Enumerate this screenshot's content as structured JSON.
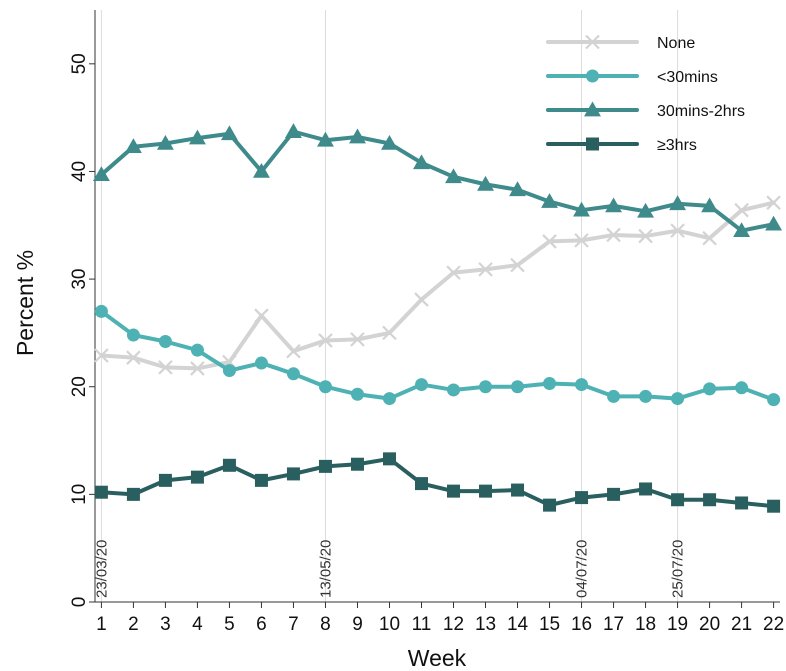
{
  "chart_data": {
    "type": "line",
    "xlabel": "Week",
    "ylabel": "Percent %",
    "x": [
      1,
      2,
      3,
      4,
      5,
      6,
      7,
      8,
      9,
      10,
      11,
      12,
      13,
      14,
      15,
      16,
      17,
      18,
      19,
      20,
      21,
      22
    ],
    "xlim": [
      0.8,
      22.2
    ],
    "ylim": [
      0,
      55
    ],
    "yticks": [
      0,
      10,
      20,
      30,
      40,
      50
    ],
    "grid": false,
    "legend_position": "top-right",
    "reference_lines": [
      {
        "x": 1,
        "label": "23/03/20"
      },
      {
        "x": 8,
        "label": "13/05/20"
      },
      {
        "x": 16,
        "label": "04/07/20"
      },
      {
        "x": 19,
        "label": "25/07/20"
      }
    ],
    "series": [
      {
        "name": "None",
        "color": "#d3d3d3",
        "marker": "x",
        "values": [
          22.9,
          22.7,
          21.8,
          21.7,
          22.3,
          26.6,
          23.3,
          24.3,
          24.4,
          25.0,
          28.1,
          30.6,
          30.9,
          31.3,
          33.5,
          33.6,
          34.1,
          34.0,
          34.5,
          33.8,
          36.4,
          37.1
        ]
      },
      {
        "name": "<30mins",
        "color": "#4eb1b3",
        "marker": "circle",
        "values": [
          27.0,
          24.8,
          24.2,
          23.4,
          21.5,
          22.2,
          21.2,
          20.0,
          19.3,
          18.9,
          20.2,
          19.7,
          20.0,
          20.0,
          20.3,
          20.2,
          19.1,
          19.1,
          18.9,
          19.8,
          19.9,
          18.8
        ]
      },
      {
        "name": "30mins-2hrs",
        "color": "#3f8a8b",
        "marker": "triangle",
        "values": [
          39.7,
          42.3,
          42.6,
          43.1,
          43.5,
          40.0,
          43.7,
          42.9,
          43.2,
          42.6,
          40.8,
          39.5,
          38.8,
          38.3,
          37.2,
          36.4,
          36.8,
          36.3,
          37.0,
          36.8,
          34.5,
          35.1
        ]
      },
      {
        "name": "≥3hrs",
        "color": "#2a5f60",
        "marker": "square",
        "values": [
          10.2,
          10.0,
          11.3,
          11.6,
          12.7,
          11.3,
          11.9,
          12.6,
          12.8,
          13.3,
          11.0,
          10.3,
          10.3,
          10.4,
          9.0,
          9.7,
          10.0,
          10.5,
          9.5,
          9.5,
          9.2,
          8.9
        ]
      }
    ]
  }
}
